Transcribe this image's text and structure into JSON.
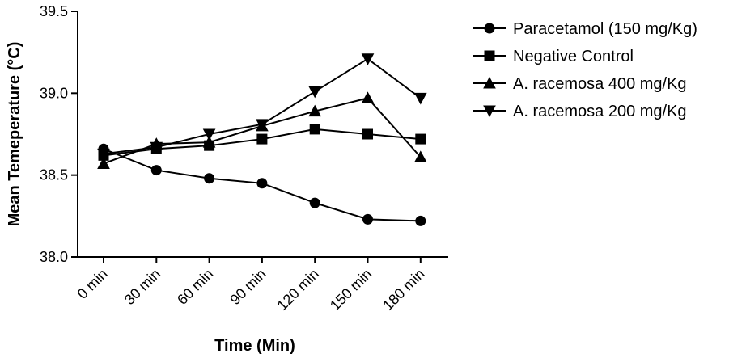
{
  "chart_data": {
    "type": "line",
    "categories": [
      "0 min",
      "30 min",
      "60 min",
      "90 min",
      "120 min",
      "150 min",
      "180 min"
    ],
    "xlabel": "Time (Min)",
    "ylabel": "Mean Temeperature (°C)",
    "ylim": [
      38.0,
      39.5
    ],
    "yticks": [
      "38.0",
      "38.5",
      "39.0",
      "39.5"
    ],
    "legend_position": "right",
    "series": [
      {
        "name": "Paracetamol (150 mg/Kg)",
        "marker": "circle",
        "values": [
          38.66,
          38.53,
          38.48,
          38.45,
          38.33,
          38.23,
          38.22
        ]
      },
      {
        "name": "Negative Control",
        "marker": "square",
        "values": [
          38.62,
          38.66,
          38.68,
          38.72,
          38.78,
          38.75,
          38.72
        ]
      },
      {
        "name": "A. racemosa 400 mg/Kg",
        "marker": "triangle-up",
        "values": [
          38.57,
          38.69,
          38.7,
          38.8,
          38.89,
          38.97,
          38.61
        ]
      },
      {
        "name": "A. racemosa 200 mg/Kg",
        "marker": "triangle-down",
        "values": [
          38.63,
          38.67,
          38.75,
          38.81,
          39.01,
          39.21,
          38.97
        ]
      }
    ]
  }
}
